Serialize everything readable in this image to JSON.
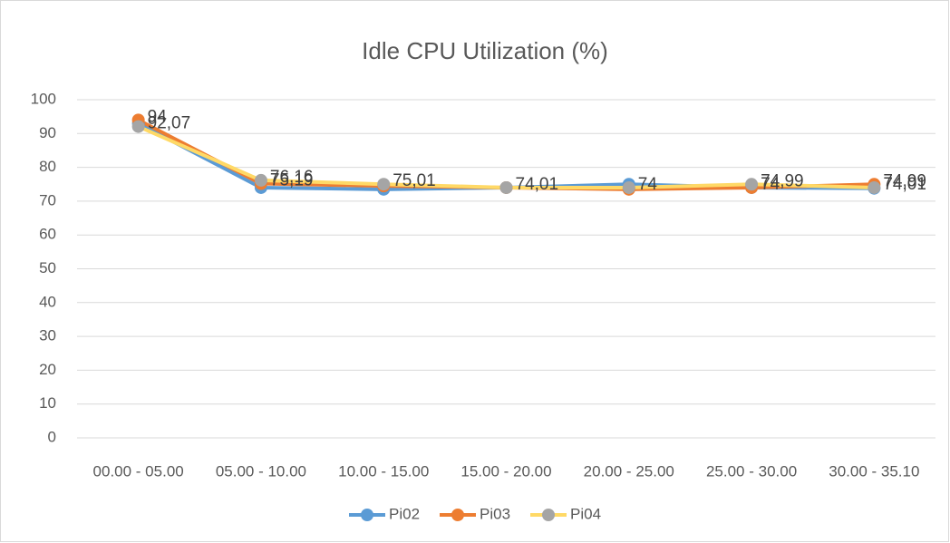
{
  "chart_data": {
    "type": "line",
    "title": "Idle CPU Utilization (%)",
    "categories": [
      "00.00 - 05.00",
      "05.00 - 10.00",
      "10.00 - 15.00",
      "15.00 - 20.00",
      "20.00 - 25.00",
      "25.00 - 30.00",
      "30.00 - 35.10"
    ],
    "series": [
      {
        "name": "Pi02",
        "color": "#5b9bd5",
        "marker_color": "#5b9bd5",
        "values": [
          93,
          74,
          73.5,
          74,
          75,
          74,
          73.8
        ]
      },
      {
        "name": "Pi03",
        "color": "#ed7d31",
        "marker_color": "#ed7d31",
        "values": [
          94,
          75.19,
          74.5,
          74,
          73.5,
          74,
          74.99
        ],
        "value_labels": [
          "94",
          "75,19",
          null,
          null,
          null,
          "74",
          "74,99"
        ]
      },
      {
        "name": "Pi04",
        "color": "#ffd966",
        "marker_color": "#a5a5a5",
        "values": [
          92.07,
          76.16,
          75.01,
          74.01,
          74,
          74.99,
          74.01
        ],
        "value_labels": [
          "92,07",
          "76,16",
          "75,01",
          "74,01",
          "74",
          "74,99",
          "74,01"
        ]
      }
    ],
    "ylim": [
      0,
      100
    ],
    "yticks": [
      0,
      10,
      20,
      30,
      40,
      50,
      60,
      70,
      80,
      90,
      100
    ],
    "grid": true,
    "legend": "bottom"
  }
}
